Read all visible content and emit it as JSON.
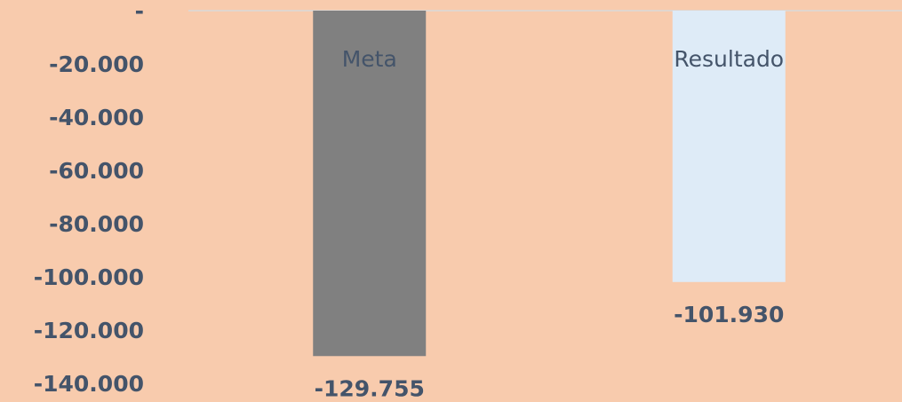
{
  "chart_data": {
    "type": "bar",
    "categories": [
      "Meta",
      "Resultado"
    ],
    "series": [
      {
        "name": null,
        "colors": [
          "#808080",
          "#deebf7"
        ],
        "values": [
          -129755,
          -101930
        ],
        "value_labels": [
          "-129.755",
          "-101.930"
        ]
      }
    ],
    "ylim": [
      -140000,
      0
    ],
    "yticks": [
      {
        "value": 0,
        "label": "-"
      },
      {
        "value": -20000,
        "label": "-20.000"
      },
      {
        "value": -40000,
        "label": "-40.000"
      },
      {
        "value": -60000,
        "label": "-60.000"
      },
      {
        "value": -80000,
        "label": "-80.000"
      },
      {
        "value": -100000,
        "label": "-100.000"
      },
      {
        "value": -120000,
        "label": "-120.000"
      },
      {
        "value": -140000,
        "label": "-140.000"
      }
    ],
    "grid": false
  }
}
